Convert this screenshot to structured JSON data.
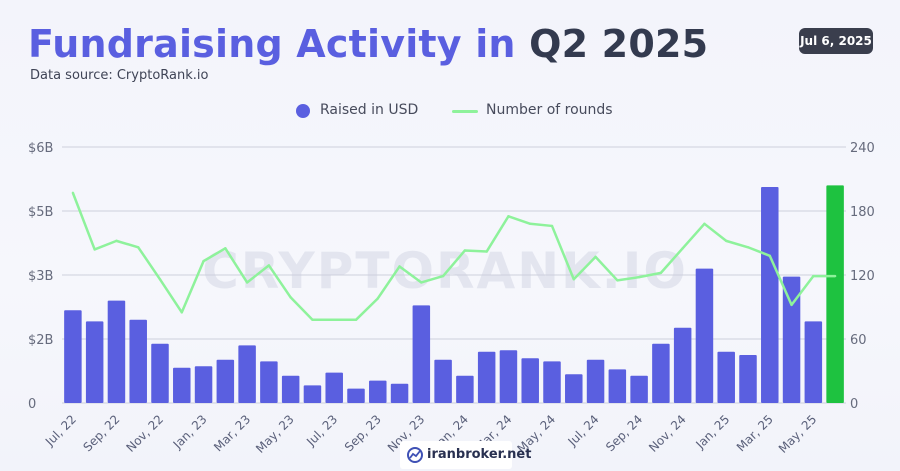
{
  "header": {
    "title_part1": "Fundraising Activity in",
    "title_part2": "Q2 2025",
    "source": "Data source: CryptoRank.io",
    "date": "Jul 6, 2025"
  },
  "legend": {
    "raised": "Raised in USD",
    "rounds": "Number of rounds"
  },
  "watermark": {
    "text": "CRYPTORANK.IO"
  },
  "badge": {
    "text": "iranbroker.net"
  },
  "colors": {
    "bar": "#5a5fe0",
    "highlight": "#1ec240",
    "line": "#8ef29b",
    "grid": "#cdd0dc"
  },
  "chart_data": {
    "type": "bar",
    "title": "Fundraising Activity in Q2 2025",
    "categories": [
      "Jul 22",
      "Aug 22",
      "Sep 22",
      "Oct 22",
      "Nov 22",
      "Dec 22",
      "Jan 23",
      "Feb 23",
      "Mar 23",
      "Apr 23",
      "May 23",
      "Jun 23",
      "Jul 23",
      "Aug 23",
      "Sep 23",
      "Oct 23",
      "Nov 23",
      "Dec 23",
      "Jan 24",
      "Feb 24",
      "Mar 24",
      "Apr 24",
      "May 24",
      "Jun 24",
      "Jul 24",
      "Aug 24",
      "Sep 24",
      "Oct 24",
      "Nov 24",
      "Dec 24",
      "Jan 25",
      "Feb 25",
      "Mar 25",
      "Apr 25",
      "May 25",
      "Jun 25"
    ],
    "x_tick_labels": [
      "Jul, 22",
      "Sep, 22",
      "Nov, 22",
      "Jan, 23",
      "Mar, 23",
      "May, 23",
      "Jul, 23",
      "Sep, 23",
      "Nov, 23",
      "Jan, 24",
      "Mar, 24",
      "May, 24",
      "Jul, 24",
      "Sep, 24",
      "Nov, 24",
      "Jan, 25",
      "Mar, 25",
      "May, 25"
    ],
    "x_tick_every": 2,
    "left_axis": {
      "label": "Raised in USD",
      "ticks": [
        "0",
        "$2B",
        "$3B",
        "$5B",
        "$6B"
      ],
      "ylim": [
        0,
        8
      ]
    },
    "right_axis": {
      "label": "Number of rounds",
      "ticks": [
        "0",
        "60",
        "120",
        "180",
        "240"
      ],
      "ylim": [
        0,
        240
      ]
    },
    "series": [
      {
        "name": "Raised in USD",
        "type": "bar",
        "axis": "left",
        "values": [
          2.9,
          2.55,
          3.2,
          2.6,
          1.85,
          1.1,
          1.15,
          1.35,
          1.8,
          1.3,
          0.85,
          0.55,
          0.95,
          0.45,
          0.7,
          0.6,
          3.05,
          1.35,
          0.85,
          1.6,
          1.65,
          1.4,
          1.3,
          0.9,
          1.35,
          1.05,
          0.85,
          1.85,
          2.35,
          4.2,
          1.6,
          1.5,
          6.75,
          3.95,
          2.55,
          6.8
        ],
        "highlight_index": 35
      },
      {
        "name": "Number of rounds",
        "type": "line",
        "axis": "right",
        "values": [
          197,
          144,
          152,
          146,
          116,
          85,
          133,
          145,
          113,
          129,
          99,
          78,
          78,
          78,
          98,
          128,
          113,
          119,
          143,
          142,
          175,
          168,
          166,
          116,
          137,
          115,
          118,
          122,
          145,
          168,
          152,
          146,
          138,
          92,
          119,
          119
        ]
      }
    ]
  }
}
